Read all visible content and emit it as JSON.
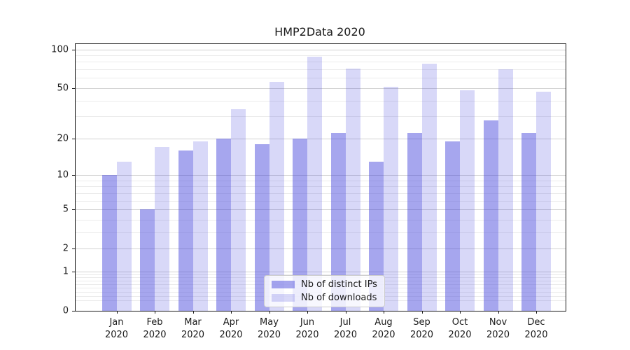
{
  "chart_data": {
    "type": "bar",
    "title": "HMP2Data 2020",
    "categories": [
      {
        "month": "Jan",
        "year": "2020"
      },
      {
        "month": "Feb",
        "year": "2020"
      },
      {
        "month": "Mar",
        "year": "2020"
      },
      {
        "month": "Apr",
        "year": "2020"
      },
      {
        "month": "May",
        "year": "2020"
      },
      {
        "month": "Jun",
        "year": "2020"
      },
      {
        "month": "Jul",
        "year": "2020"
      },
      {
        "month": "Aug",
        "year": "2020"
      },
      {
        "month": "Sep",
        "year": "2020"
      },
      {
        "month": "Oct",
        "year": "2020"
      },
      {
        "month": "Nov",
        "year": "2020"
      },
      {
        "month": "Dec",
        "year": "2020"
      }
    ],
    "series": [
      {
        "name": "Nb of distinct IPs",
        "base_color": "#4646dc",
        "alpha": 0.48,
        "apparent_color": "#a5a5ee",
        "values": [
          10,
          5,
          16,
          20,
          18,
          20,
          22,
          13,
          22,
          19,
          28,
          22
        ]
      },
      {
        "name": "Nb of downloads",
        "base_color": "#4646dc",
        "alpha": 0.21,
        "apparent_color": "#d8d8f7",
        "values": [
          13,
          17,
          19,
          34,
          56,
          88,
          71,
          51,
          78,
          48,
          70,
          47
        ]
      }
    ],
    "y_scale": "log1p",
    "ylim": [
      0,
      110
    ],
    "y_major_ticks": [
      0,
      1,
      2,
      5,
      10,
      20,
      50,
      100
    ],
    "y_tick_labels": [
      "0",
      "1",
      "2",
      "5",
      "10",
      "20",
      "50",
      "100"
    ],
    "y_minor_ticks": [
      0.2,
      0.3,
      0.4,
      0.5,
      0.6,
      0.7,
      0.8,
      0.9,
      3,
      4,
      6,
      7,
      8,
      9,
      30,
      40,
      60,
      70,
      80,
      90
    ],
    "grid": true,
    "legend_position": "lower center",
    "style": {
      "axis_color": "#1a1a1a",
      "major_grid_color": "#d2d2d2",
      "minor_grid_color": "#ebebeb",
      "legend_border_color": "#cccccc",
      "legend_background": "rgba(255,255,255,0.8)",
      "text_color": "#1a1a1a"
    }
  }
}
